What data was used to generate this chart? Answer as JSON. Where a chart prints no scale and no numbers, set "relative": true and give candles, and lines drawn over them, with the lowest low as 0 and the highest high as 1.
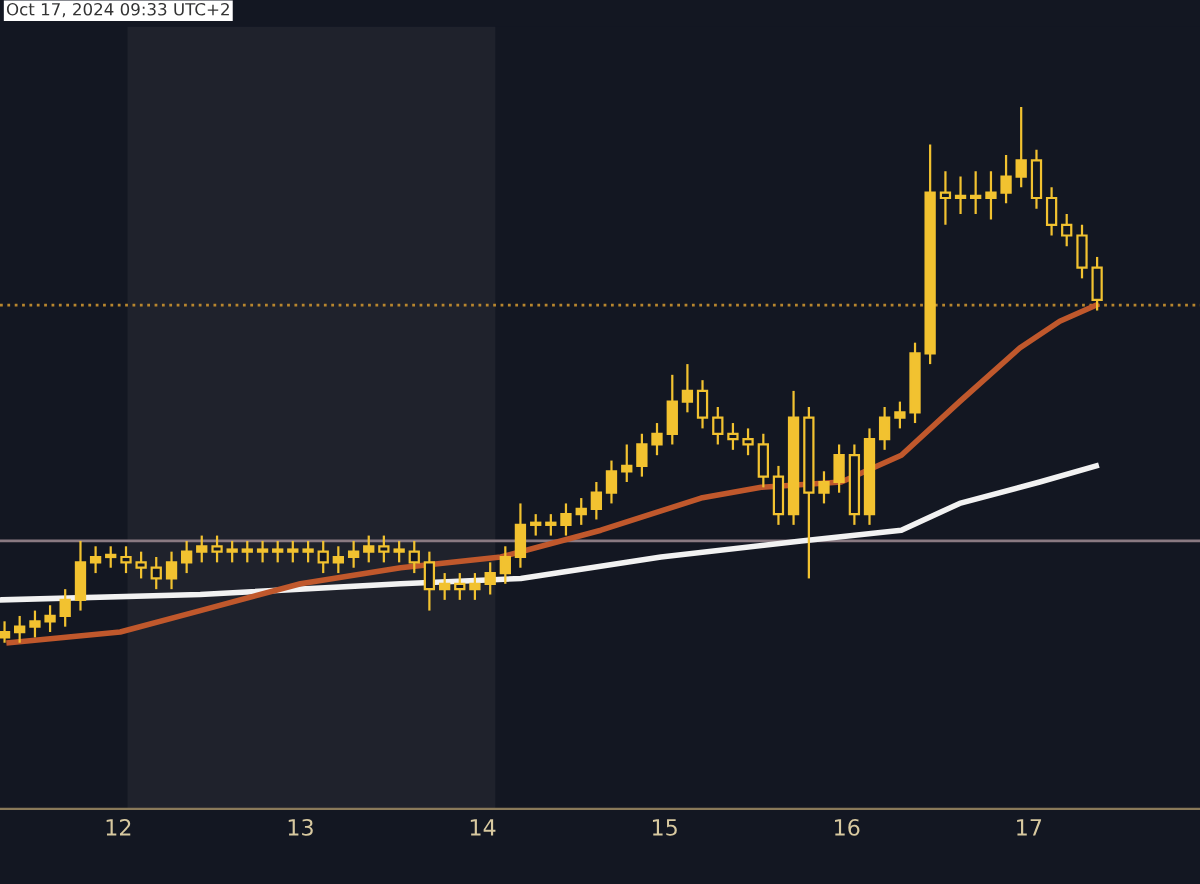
{
  "chart_data": {
    "type": "candlestick",
    "relative": true,
    "annotations": [
      "Oct 17, 2024 09:33 UTC+2"
    ],
    "xlim": [
      11.35,
      17.94
    ],
    "xticks": [
      12,
      13,
      14,
      15,
      16,
      17
    ],
    "tick_labels": "x",
    "bands": [
      {
        "axis": "x",
        "from": 12.05,
        "to": 14.07,
        "color": "#1f222c"
      }
    ],
    "ref_lines": [
      {
        "axis": "y",
        "value": 0.19,
        "color": "#8a7a82",
        "line_style": "solid"
      },
      {
        "axis": "y",
        "value": 0.63,
        "color": "#b8862e",
        "line_style": "dotted"
      }
    ],
    "series": [
      {
        "color": "#f2c230",
        "x": [
          11.375,
          11.458,
          11.542,
          11.625,
          11.708,
          11.792,
          11.875,
          11.958,
          12.042,
          12.125,
          12.208,
          12.292,
          12.375,
          12.458,
          12.542,
          12.625,
          12.708,
          12.792,
          12.875,
          12.958,
          13.042,
          13.125,
          13.208,
          13.292,
          13.375,
          13.458,
          13.542,
          13.625,
          13.708,
          13.792,
          13.875,
          13.958,
          14.042,
          14.125,
          14.208,
          14.292,
          14.375,
          14.458,
          14.542,
          14.625,
          14.708,
          14.792,
          14.875,
          14.958,
          15.042,
          15.125,
          15.208,
          15.292,
          15.375,
          15.458,
          15.542,
          15.625,
          15.708,
          15.792,
          15.875,
          15.958,
          16.042,
          16.125,
          16.208,
          16.292,
          16.375,
          16.458,
          16.542,
          16.625,
          16.708,
          16.792,
          16.875,
          16.958,
          17.042,
          17.125,
          17.208,
          17.292,
          17.375
        ],
        "ohlc": [
          [
            0.01,
            0.04,
            0.0,
            0.02
          ],
          [
            0.02,
            0.05,
            0.0,
            0.03
          ],
          [
            0.03,
            0.06,
            0.01,
            0.04
          ],
          [
            0.04,
            0.07,
            0.02,
            0.05
          ],
          [
            0.05,
            0.1,
            0.03,
            0.08
          ],
          [
            0.08,
            0.19,
            0.06,
            0.15
          ],
          [
            0.15,
            0.18,
            0.13,
            0.16
          ],
          [
            0.16,
            0.18,
            0.14,
            0.16
          ],
          [
            0.16,
            0.18,
            0.13,
            0.15
          ],
          [
            0.15,
            0.17,
            0.12,
            0.14
          ],
          [
            0.14,
            0.16,
            0.1,
            0.12
          ],
          [
            0.12,
            0.17,
            0.1,
            0.15
          ],
          [
            0.15,
            0.19,
            0.13,
            0.17
          ],
          [
            0.17,
            0.2,
            0.15,
            0.18
          ],
          [
            0.18,
            0.2,
            0.15,
            0.17
          ],
          [
            0.17,
            0.19,
            0.15,
            0.17
          ],
          [
            0.17,
            0.19,
            0.15,
            0.17
          ],
          [
            0.17,
            0.19,
            0.15,
            0.17
          ],
          [
            0.17,
            0.19,
            0.15,
            0.17
          ],
          [
            0.17,
            0.19,
            0.15,
            0.17
          ],
          [
            0.17,
            0.19,
            0.15,
            0.17
          ],
          [
            0.17,
            0.19,
            0.13,
            0.15
          ],
          [
            0.15,
            0.18,
            0.13,
            0.16
          ],
          [
            0.16,
            0.19,
            0.14,
            0.17
          ],
          [
            0.17,
            0.2,
            0.15,
            0.18
          ],
          [
            0.18,
            0.2,
            0.15,
            0.17
          ],
          [
            0.17,
            0.19,
            0.15,
            0.17
          ],
          [
            0.17,
            0.19,
            0.13,
            0.15
          ],
          [
            0.15,
            0.17,
            0.06,
            0.1
          ],
          [
            0.1,
            0.13,
            0.08,
            0.11
          ],
          [
            0.11,
            0.13,
            0.08,
            0.1
          ],
          [
            0.1,
            0.13,
            0.08,
            0.11
          ],
          [
            0.11,
            0.15,
            0.09,
            0.13
          ],
          [
            0.13,
            0.18,
            0.11,
            0.16
          ],
          [
            0.16,
            0.26,
            0.14,
            0.22
          ],
          [
            0.22,
            0.24,
            0.2,
            0.22
          ],
          [
            0.22,
            0.24,
            0.2,
            0.22
          ],
          [
            0.22,
            0.26,
            0.2,
            0.24
          ],
          [
            0.24,
            0.27,
            0.22,
            0.25
          ],
          [
            0.25,
            0.3,
            0.23,
            0.28
          ],
          [
            0.28,
            0.34,
            0.26,
            0.32
          ],
          [
            0.32,
            0.37,
            0.3,
            0.33
          ],
          [
            0.33,
            0.39,
            0.31,
            0.37
          ],
          [
            0.37,
            0.41,
            0.35,
            0.39
          ],
          [
            0.39,
            0.5,
            0.37,
            0.45
          ],
          [
            0.45,
            0.52,
            0.43,
            0.47
          ],
          [
            0.47,
            0.49,
            0.4,
            0.42
          ],
          [
            0.42,
            0.44,
            0.37,
            0.39
          ],
          [
            0.39,
            0.41,
            0.36,
            0.38
          ],
          [
            0.38,
            0.4,
            0.35,
            0.37
          ],
          [
            0.37,
            0.39,
            0.29,
            0.31
          ],
          [
            0.31,
            0.33,
            0.22,
            0.24
          ],
          [
            0.24,
            0.47,
            0.22,
            0.42
          ],
          [
            0.42,
            0.44,
            0.12,
            0.28
          ],
          [
            0.28,
            0.32,
            0.26,
            0.3
          ],
          [
            0.3,
            0.37,
            0.28,
            0.35
          ],
          [
            0.35,
            0.37,
            0.22,
            0.24
          ],
          [
            0.24,
            0.4,
            0.22,
            0.38
          ],
          [
            0.38,
            0.44,
            0.36,
            0.42
          ],
          [
            0.42,
            0.45,
            0.4,
            0.43
          ],
          [
            0.43,
            0.56,
            0.41,
            0.54
          ],
          [
            0.54,
            0.93,
            0.52,
            0.84
          ],
          [
            0.84,
            0.88,
            0.78,
            0.83
          ],
          [
            0.83,
            0.87,
            0.8,
            0.83
          ],
          [
            0.83,
            0.88,
            0.8,
            0.83
          ],
          [
            0.83,
            0.88,
            0.79,
            0.84
          ],
          [
            0.84,
            0.91,
            0.82,
            0.87
          ],
          [
            0.87,
            1.0,
            0.85,
            0.9
          ],
          [
            0.9,
            0.92,
            0.81,
            0.83
          ],
          [
            0.83,
            0.85,
            0.76,
            0.78
          ],
          [
            0.78,
            0.8,
            0.74,
            0.76
          ],
          [
            0.76,
            0.78,
            0.68,
            0.7
          ],
          [
            0.7,
            0.72,
            0.62,
            0.64
          ]
        ]
      },
      {
        "type": "line",
        "color": "#f2f2f2",
        "x": [
          11.36,
          12.45,
          13.55,
          14.21,
          14.98,
          15.75,
          16.3,
          16.62,
          17.06,
          17.37
        ],
        "values": [
          0.08,
          0.09,
          0.11,
          0.12,
          0.16,
          0.19,
          0.21,
          0.26,
          0.3,
          0.33
        ]
      },
      {
        "type": "line",
        "color": "#c0582c",
        "x": [
          11.4,
          12.01,
          12.45,
          13.0,
          13.55,
          14.1,
          14.65,
          15.2,
          15.53,
          15.97,
          16.3,
          16.62,
          16.95,
          17.17,
          17.37
        ],
        "values": [
          0.0,
          0.02,
          0.06,
          0.11,
          0.14,
          0.16,
          0.21,
          0.27,
          0.29,
          0.3,
          0.35,
          0.45,
          0.55,
          0.6,
          0.63
        ]
      }
    ]
  }
}
